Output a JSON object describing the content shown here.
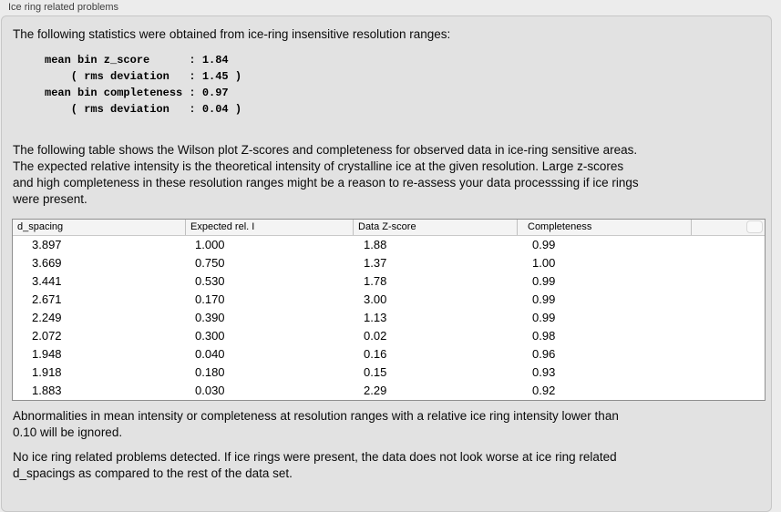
{
  "panel": {
    "title": "Ice ring related problems"
  },
  "intro_text": "The following statistics were obtained from ice-ring insensitive resolution ranges:",
  "stats": {
    "mean_bin_z_score": "1.84",
    "z_score_rms_deviation": "1.45",
    "mean_bin_completeness": "0.97",
    "completeness_rms_deviation": "0.04",
    "block_text": "mean bin z_score      : 1.84\n    ( rms deviation   : 1.45 )\nmean bin completeness : 0.97\n    ( rms deviation   : 0.04 )"
  },
  "table_description": "The following table shows the Wilson plot Z-scores and completeness for observed data in ice-ring sensitive areas.\nThe expected relative intensity is the theoretical intensity of crystalline ice at the given resolution. Large z-scores\nand high completeness in these resolution ranges might be a reason to re-assess your data processsing if ice rings\nwere present.",
  "table": {
    "columns": [
      {
        "key": "d_spacing",
        "label": "d_spacing"
      },
      {
        "key": "expected_rel_i",
        "label": "Expected rel. I"
      },
      {
        "key": "data_z_score",
        "label": "Data Z-score"
      },
      {
        "key": "completeness",
        "label": "Completeness"
      },
      {
        "key": "spacer",
        "label": ""
      }
    ],
    "rows": [
      [
        "3.897",
        "1.000",
        "1.88",
        "0.99"
      ],
      [
        "3.669",
        "0.750",
        "1.37",
        "1.00"
      ],
      [
        "3.441",
        "0.530",
        "1.78",
        "0.99"
      ],
      [
        "2.671",
        "0.170",
        "3.00",
        "0.99"
      ],
      [
        "2.249",
        "0.390",
        "1.13",
        "0.99"
      ],
      [
        "2.072",
        "0.300",
        "0.02",
        "0.98"
      ],
      [
        "1.948",
        "0.040",
        "0.16",
        "0.96"
      ],
      [
        "1.918",
        "0.180",
        "0.15",
        "0.93"
      ],
      [
        "1.883",
        "0.030",
        "2.29",
        "0.92"
      ]
    ]
  },
  "ignore_note": "Abnormalities in mean intensity or completeness at resolution ranges with a relative ice ring intensity lower than\n0.10 will be ignored.",
  "conclusion": "No ice ring related problems detected. If ice rings were present, the data does not look worse at ice ring related\nd_spacings as compared to the rest of the data set.",
  "colors": {
    "page_bg": "#ececec",
    "panel_bg": "#e2e2e2",
    "table_bg": "#ffffff",
    "header_bg": "#f4f4f4"
  }
}
